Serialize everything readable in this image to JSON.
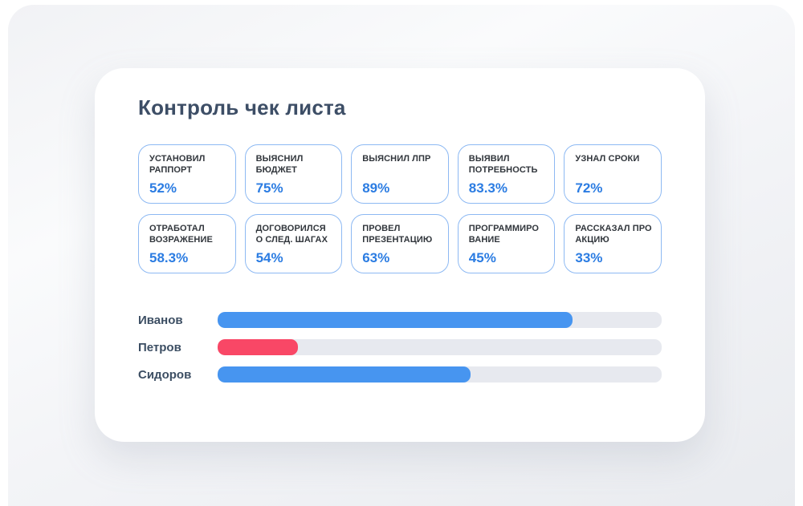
{
  "panel": {
    "title": "Контроль чек листа"
  },
  "cards": [
    {
      "label": "УСТАНОВИЛ РАППОРТ",
      "value": "52%"
    },
    {
      "label": "ВЫЯСНИЛ БЮДЖЕТ",
      "value": "75%"
    },
    {
      "label": "ВЫЯСНИЛ ЛПР",
      "value": "89%"
    },
    {
      "label": "ВЫЯВИЛ ПОТРЕБНОСТЬ",
      "value": "83.3%"
    },
    {
      "label": "УЗНАЛ СРОКИ",
      "value": "72%"
    },
    {
      "label": "ОТРАБОТАЛ ВОЗРАЖЕНИЕ",
      "value": "58.3%"
    },
    {
      "label": "ДОГОВОРИЛСЯ О СЛЕД. ШАГАХ",
      "value": "54%"
    },
    {
      "label": "ПРОВЕЛ ПРЕЗЕНТАЦИЮ",
      "value": "63%"
    },
    {
      "label": "ПРОГРАММИРО ВАНИЕ",
      "value": "45%"
    },
    {
      "label": "РАССКАЗАЛ ПРО АКЦИЮ",
      "value": "33%"
    }
  ],
  "bars": [
    {
      "name": "Иванов",
      "width": "80%",
      "color": "#4795f0"
    },
    {
      "name": "Петров",
      "width": "18%",
      "color": "#f94766"
    },
    {
      "name": "Сидоров",
      "width": "57%",
      "color": "#4795f0"
    }
  ],
  "chart_data": {
    "type": "bar",
    "orientation": "horizontal",
    "title": "Контроль чек листа",
    "categories": [
      "Иванов",
      "Петров",
      "Сидоров"
    ],
    "values": [
      80,
      18,
      57
    ],
    "unit": "%",
    "xlim": [
      0,
      100
    ],
    "gridlines": false,
    "legend": false,
    "bar_colors": [
      "#4795f0",
      "#f94766",
      "#4795f0"
    ],
    "track_color": "#e7e9ef",
    "stat_cards": {
      "labels": [
        "УСТАНОВИЛ РАППОРТ",
        "ВЫЯСНИЛ БЮДЖЕТ",
        "ВЫЯСНИЛ ЛПР",
        "ВЫЯВИЛ ПОТРЕБНОСТЬ",
        "УЗНАЛ СРОКИ",
        "ОТРАБОТАЛ ВОЗРАЖЕНИЕ",
        "ДОГОВОРИЛСЯ О СЛЕД. ШАГАХ",
        "ПРОВЕЛ ПРЕЗЕНТАЦИЮ",
        "ПРОГРАММИРО ВАНИЕ",
        "РАССКАЗАЛ ПРО АКЦИЮ"
      ],
      "values_pct": [
        52,
        75,
        89,
        83.3,
        72,
        58.3,
        54,
        63,
        45,
        33
      ]
    }
  },
  "colors": {
    "accent_blue": "#2b7ce2",
    "card_border_blue": "#8db9f3",
    "bar_blue": "#4795f0",
    "bar_red": "#f94766",
    "bar_track": "#e7e9ef",
    "title_text": "#3d4e66",
    "panel_bg": "#ffffff",
    "page_bg": "#edeff3"
  }
}
